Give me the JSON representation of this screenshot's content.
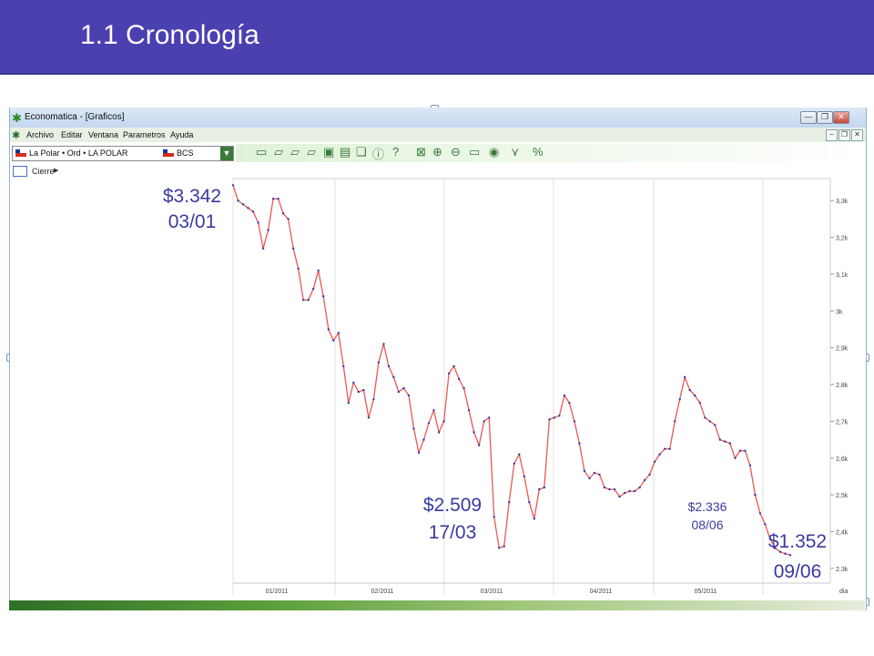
{
  "slide": {
    "title": "1.1 Cronología"
  },
  "window": {
    "title": "Economatica - [Graficos]",
    "controls": {
      "minimize": "—",
      "restore": "❐",
      "close": "✕"
    }
  },
  "menubar": {
    "items": [
      "Archivo",
      "Editar",
      "Ventana",
      "Parametros",
      "Ayuda"
    ]
  },
  "toolbar": {
    "asset": "La Polar • Ord • LA POLAR",
    "market": "BCS"
  },
  "series_selector": {
    "label": "Cierre"
  },
  "colors": {
    "header": "#4a40b0",
    "line": "#e8585a",
    "points": "#3a3aa0",
    "annotation": "#3a3aa0",
    "grid": "#e0e0e0"
  },
  "chart_data": {
    "type": "line",
    "title": "",
    "xlabel": "",
    "ylabel": "",
    "x_unit_label": "dia",
    "months": [
      "01/2011",
      "02/2011",
      "03/2011",
      "04/2011",
      "05/2011"
    ],
    "y_ticks": [
      "3,3k",
      "3,2k",
      "3,1k",
      "3k",
      "2,9k",
      "2,8k",
      "2,7k",
      "2,6k",
      "2,5k",
      "2,4k",
      "2,3k"
    ],
    "ylim": [
      2260,
      3360
    ],
    "grid": true,
    "series": [
      {
        "values": [
          3342,
          3300,
          3290,
          3280,
          3270,
          3240,
          3170,
          3220,
          3305,
          3305,
          3265,
          3250,
          3170,
          3115,
          3030,
          3030,
          3060,
          3110,
          3040,
          2950,
          2920,
          2940,
          2850,
          2750,
          2805,
          2780,
          2785,
          2710,
          2760,
          2860,
          2910,
          2850,
          2820,
          2780,
          2790,
          2770,
          2680,
          2615,
          2650,
          2695,
          2730,
          2670,
          2700,
          2830,
          2850,
          2815,
          2790,
          2730,
          2670,
          2635,
          2700,
          2710,
          2440,
          2356,
          2360,
          2480,
          2585,
          2610,
          2550,
          2480,
          2435,
          2515,
          2520,
          2705,
          2710,
          2715,
          2770,
          2750,
          2700,
          2640,
          2565,
          2545,
          2560,
          2555,
          2520,
          2515,
          2515,
          2495,
          2505,
          2510,
          2510,
          2520,
          2540,
          2555,
          2590,
          2610,
          2625,
          2625,
          2700,
          2760,
          2820,
          2785,
          2770,
          2750,
          2710,
          2700,
          2690,
          2650,
          2645,
          2640,
          2600,
          2620,
          2620,
          2580,
          2500,
          2450,
          2420,
          2380,
          2355,
          2345,
          2340,
          2336
        ]
      }
    ],
    "annotations": [
      {
        "price": "$3.342",
        "date": "03/01"
      },
      {
        "price": "$2.509",
        "date": "17/03"
      },
      {
        "price": "$2.336",
        "date": "08/06"
      },
      {
        "price": "$1.352",
        "date": "09/06"
      }
    ]
  }
}
